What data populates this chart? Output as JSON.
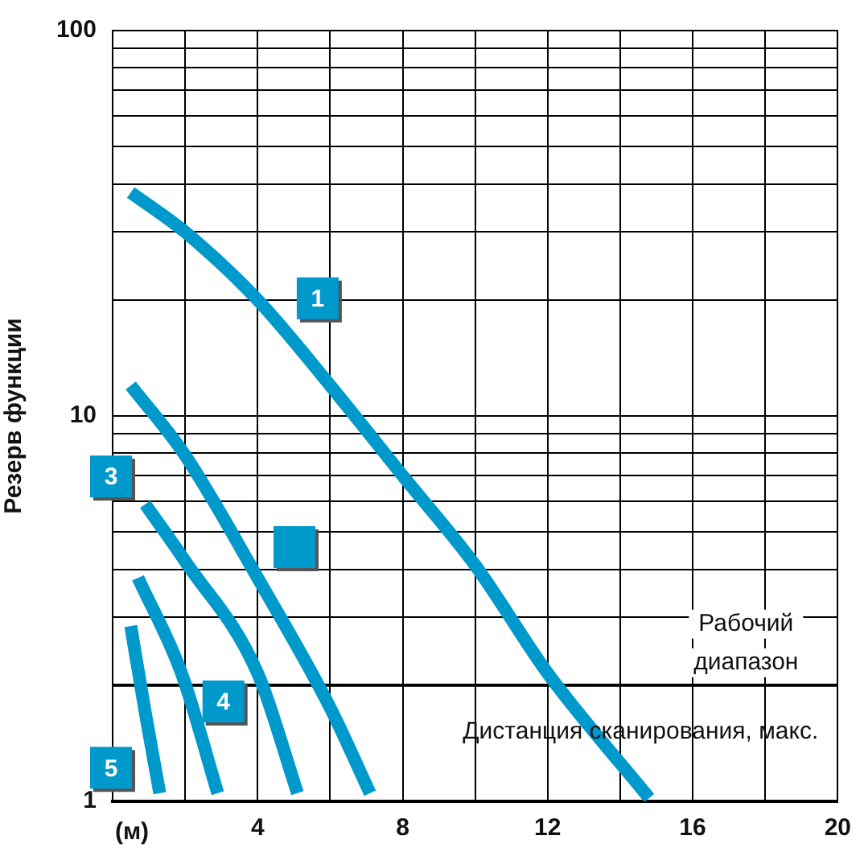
{
  "chart_data": {
    "type": "line",
    "xlabel": "(м)",
    "ylabel": "Резерв функции",
    "log": "y",
    "grid": true,
    "legend": false,
    "marker": "none",
    "line_style": "solid",
    "xlim": [
      0,
      20
    ],
    "xticks": [
      {
        "value": 0,
        "label": null
      },
      {
        "value": 2,
        "label": null
      },
      4,
      {
        "value": 6,
        "label": null
      },
      8,
      {
        "value": 10,
        "label": null
      },
      12,
      {
        "value": 14,
        "label": null
      },
      16,
      {
        "value": 18,
        "label": null
      },
      20
    ],
    "ylim": [
      1,
      100
    ],
    "yticks": [
      1,
      {
        "value": 2,
        "label": null
      },
      {
        "value": 3,
        "label": null
      },
      {
        "value": 4,
        "label": null
      },
      {
        "value": 5,
        "label": null
      },
      {
        "value": 6,
        "label": null
      },
      {
        "value": 7,
        "label": null
      },
      {
        "value": 8,
        "label": null
      },
      {
        "value": 9,
        "label": null
      },
      10,
      {
        "value": 20,
        "label": null
      },
      {
        "value": 30,
        "label": null
      },
      {
        "value": 40,
        "label": null
      },
      {
        "value": 50,
        "label": null
      },
      {
        "value": 60,
        "label": null
      },
      {
        "value": 70,
        "label": null
      },
      {
        "value": 80,
        "label": null
      },
      {
        "value": 90,
        "label": null
      },
      100
    ],
    "series": [
      {
        "color": "#0099cc",
        "x": [
          0.5,
          2,
          4,
          6,
          8,
          10,
          12,
          14.8
        ],
        "values": [
          38,
          30,
          20,
          12,
          7,
          4.1,
          2.15,
          1.02
        ]
      },
      {
        "color": "#0099cc",
        "x": [
          0.5,
          2,
          4,
          6,
          7.1
        ],
        "values": [
          12,
          7.9,
          3.8,
          1.75,
          1.05
        ]
      },
      {
        "color": "#0099cc",
        "x": [
          0.9,
          2,
          4,
          5.1
        ],
        "values": [
          5.9,
          4.2,
          2.15,
          1.05
        ]
      },
      {
        "color": "#0099cc",
        "x": [
          0.7,
          1.9,
          2.9
        ],
        "values": [
          3.8,
          2.15,
          1.05
        ]
      },
      {
        "color": "#0099cc",
        "x": [
          0.5,
          0.9,
          1.3
        ],
        "values": [
          2.85,
          1.7,
          1.05
        ]
      }
    ],
    "ref_lines": [
      {
        "axis": "y",
        "value": 2,
        "label": "Рабочий диапазон",
        "color": "#000000"
      }
    ],
    "annotations": [
      {
        "text": "1",
        "x": 5.7,
        "y": 20
      },
      {
        "text": "3",
        "x": 0,
        "y": 6.9
      },
      {
        "text": "4",
        "x": 3.1,
        "y": 1.8
      },
      {
        "text": "5",
        "x": 0,
        "y": 1.21
      },
      "Дистанция сканирования, макс."
    ]
  }
}
